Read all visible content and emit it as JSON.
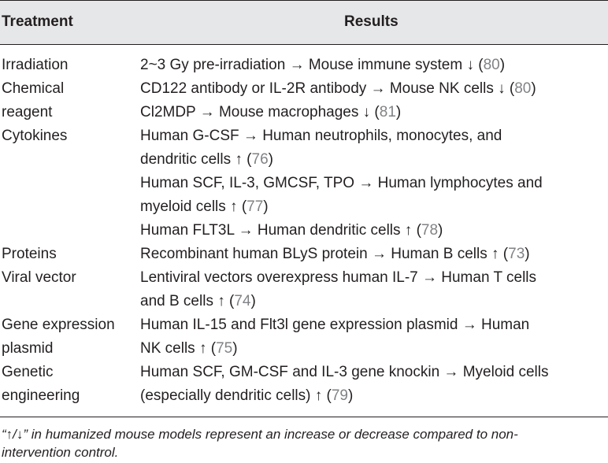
{
  "table": {
    "headers": {
      "treatment": "Treatment",
      "results": "Results"
    },
    "rows": [
      {
        "treatment": [
          "Irradiation"
        ],
        "results": [
          {
            "lines": [
              {
                "text": "2~3 Gy pre-irradiation → Mouse immune system ↓ (",
                "ref": "80",
                "close": ")"
              }
            ]
          }
        ]
      },
      {
        "treatment": [
          "Chemical",
          "reagent"
        ],
        "results": [
          {
            "lines": [
              {
                "text": "CD122 antibody or IL-2R antibody → Mouse NK cells ↓ (",
                "ref": "80",
                "close": ")"
              }
            ]
          },
          {
            "lines": [
              {
                "text": "Cl2MDP → Mouse macrophages ↓ (",
                "ref": "81",
                "close": ")"
              }
            ]
          }
        ]
      },
      {
        "treatment": [
          "Cytokines"
        ],
        "results": [
          {
            "lines": [
              {
                "text": "Human G-CSF → Human neutrophils, monocytes, and"
              },
              {
                "text": "dendritic cells ↑ (",
                "ref": "76",
                "close": ")"
              }
            ]
          },
          {
            "lines": [
              {
                "text": "Human SCF, IL-3, GMCSF, TPO → Human lymphocytes and"
              },
              {
                "text": "myeloid cells ↑ (",
                "ref": "77",
                "close": ")"
              }
            ]
          },
          {
            "lines": [
              {
                "text": "Human FLT3L → Human dendritic cells ↑ (",
                "ref": "78",
                "close": ")"
              }
            ]
          }
        ]
      },
      {
        "treatment": [
          "Proteins"
        ],
        "results": [
          {
            "lines": [
              {
                "text": "Recombinant human BLyS protein → Human B cells ↑ (",
                "ref": "73",
                "close": ")"
              }
            ]
          }
        ]
      },
      {
        "treatment": [
          "Viral vector"
        ],
        "results": [
          {
            "lines": [
              {
                "text": "Lentiviral vectors overexpress human IL-7 → Human T cells"
              },
              {
                "text": "and B cells ↑ (",
                "ref": "74",
                "close": ")"
              }
            ]
          }
        ]
      },
      {
        "treatment": [
          "Gene expression",
          "plasmid"
        ],
        "results": [
          {
            "lines": [
              {
                "text": "Human IL-15 and Flt3l gene expression plasmid → Human"
              },
              {
                "text": "NK cells ↑ (",
                "ref": "75",
                "close": ")"
              }
            ]
          }
        ]
      },
      {
        "treatment": [
          "Genetic",
          "engineering"
        ],
        "results": [
          {
            "lines": [
              {
                "text": "Human SCF, GM-CSF and IL-3 gene knockin → Myeloid cells"
              },
              {
                "text": "(especially dendritic cells) ↑ (",
                "ref": "79",
                "close": ")"
              }
            ]
          }
        ]
      }
    ]
  },
  "footnote": [
    "“↑/↓” in humanized mouse models represent an increase or decrease compared to non-",
    "intervention control."
  ],
  "colors": {
    "header_bg": "#e6e7e8",
    "text": "#231f20",
    "reference": "#808285"
  }
}
